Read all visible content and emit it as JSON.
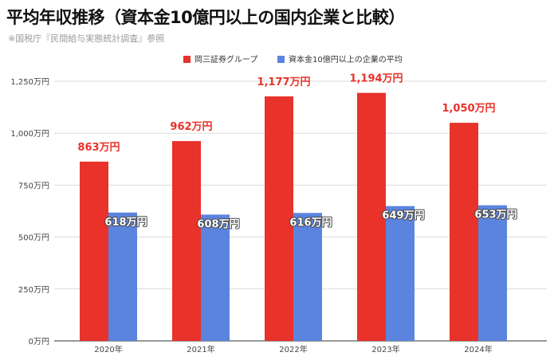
{
  "title": "平均年収推移（資本金10億円以上の国内企業と比較）",
  "source": "※国税庁『民間給与実態統計調査』参照",
  "colors": {
    "series1": "#e8322a",
    "series2": "#5b84df",
    "grid": "#d9d9d9",
    "label_red": "#e8322a",
    "label_white": "#ffffff"
  },
  "chart_data": {
    "type": "bar",
    "categories": [
      "2020年",
      "2021年",
      "2022年",
      "2023年",
      "2024年"
    ],
    "series": [
      {
        "name": "岡三証券グループ",
        "values": [
          863,
          962,
          1177,
          1194,
          1050
        ],
        "labels": [
          "863万円",
          "962万円",
          "1,177万円",
          "1,194万円",
          "1,050万円"
        ]
      },
      {
        "name": "資本金10億円以上の企業の平均",
        "values": [
          618,
          608,
          616,
          649,
          653
        ],
        "labels": [
          "618万円",
          "608万円",
          "616万円",
          "649万円",
          "653万円"
        ]
      }
    ],
    "yticks": [
      0,
      250,
      500,
      750,
      1000,
      1250
    ],
    "ytick_labels": [
      "0万円",
      "250万円",
      "500万円",
      "750万円",
      "1,000万円",
      "1,250万円"
    ],
    "ylim": [
      0,
      1250
    ],
    "grid": true,
    "legend": "top-center"
  }
}
